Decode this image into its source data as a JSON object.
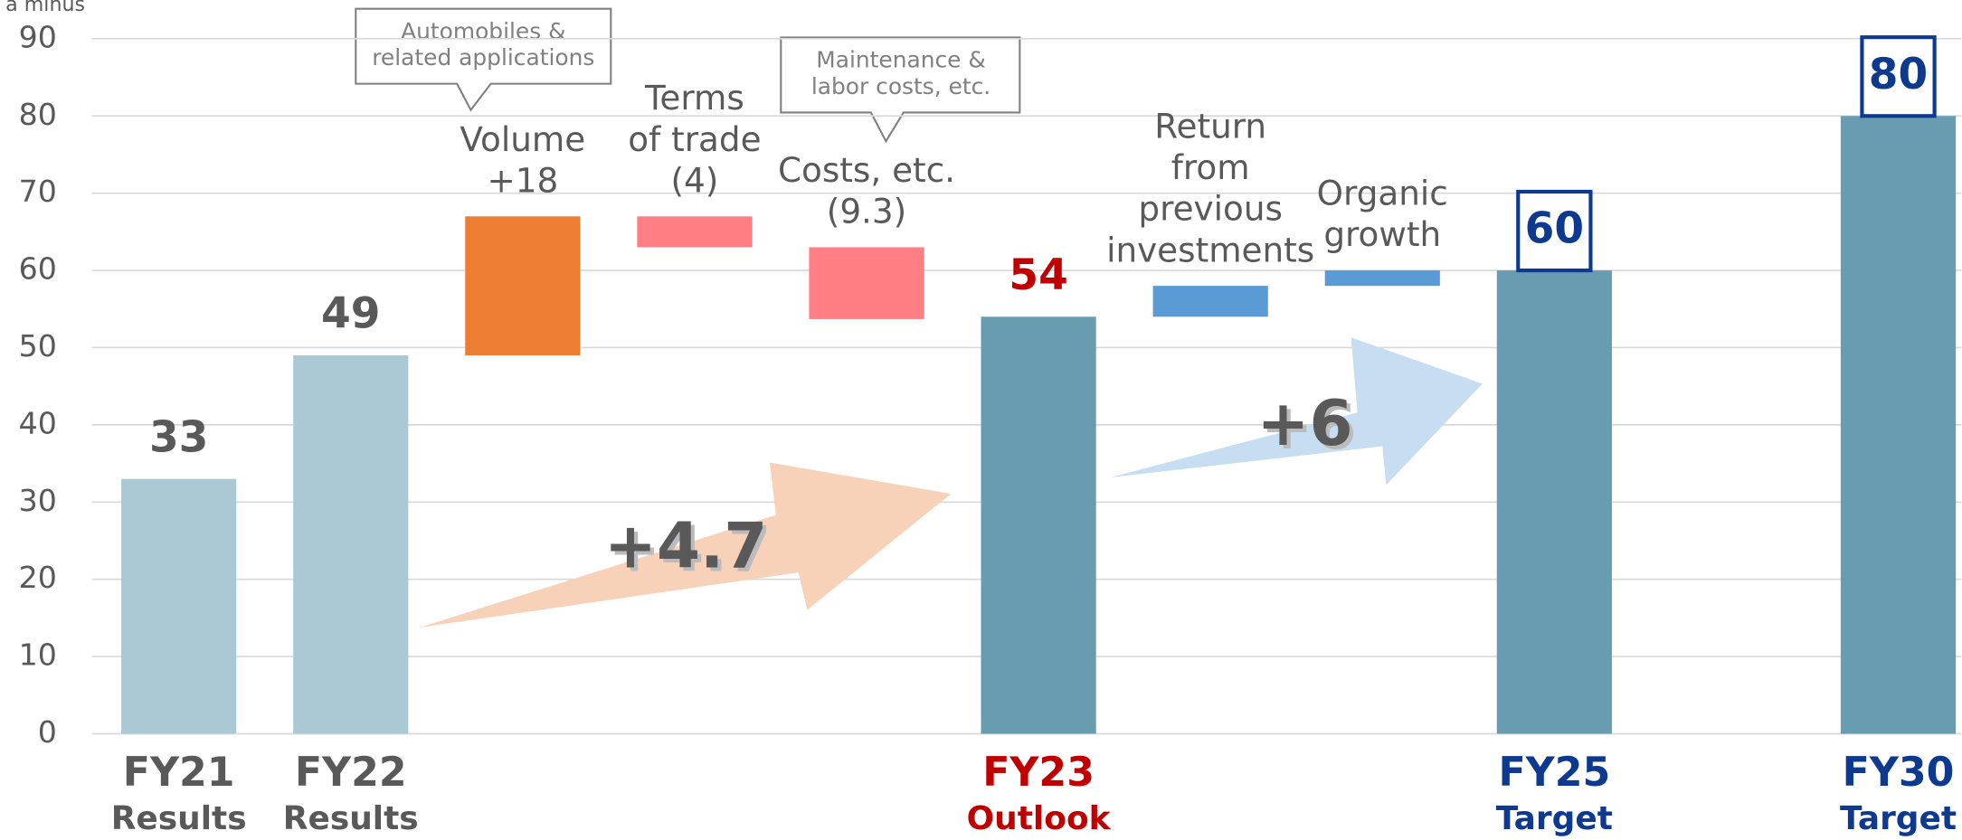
{
  "chart_data": {
    "type": "waterfall",
    "y_label": "a minus",
    "categories": [
      [
        "FY21",
        "Results"
      ],
      [
        "FY22",
        "Results"
      ],
      [
        "Volume"
      ],
      [
        "Terms",
        "of trade"
      ],
      [
        "Costs, etc."
      ],
      [
        "FY23",
        "Outlook"
      ],
      [
        "Return",
        "from",
        "previous",
        "investments"
      ],
      [
        "Organic",
        "growth"
      ],
      [
        "FY25",
        "Target"
      ],
      null,
      [
        "FY30",
        "Target"
      ]
    ],
    "measure": [
      "absolute",
      "absolute",
      "relative",
      "relative",
      "relative",
      "absolute",
      "relative",
      "relative",
      "absolute",
      null,
      "absolute"
    ],
    "values": [
      33,
      49,
      18,
      -4,
      -9.3,
      54,
      4,
      2,
      60,
      null,
      80
    ],
    "value_labels": [
      "33",
      "49",
      "+18",
      "(4)",
      "(9.3)",
      "54",
      null,
      null,
      "60",
      null,
      "80"
    ],
    "value_label_boxed": [
      false,
      false,
      false,
      false,
      false,
      false,
      false,
      false,
      true,
      false,
      true
    ],
    "colors": [
      "#abc9d5",
      "#abc9d5",
      "#ed7d31",
      "#ff7f84",
      "#ff7f84",
      "#679cb1",
      "#5b9bd5",
      "#5b9bd5",
      "#679cb1",
      null,
      "#679cb1"
    ],
    "label_colors": [
      "#595959",
      "#595959",
      "#595959",
      "#595959",
      "#595959",
      "#c00000",
      "#595959",
      "#595959",
      "#0d3a8f",
      null,
      "#0d3a8f"
    ],
    "ylim": [
      0,
      90
    ],
    "yticks": [
      0,
      10,
      20,
      30,
      40,
      50,
      60,
      70,
      80,
      90
    ],
    "grid": true,
    "callouts": [
      [
        "Automobiles &",
        "related applications"
      ],
      [
        "Maintenance &",
        "labor costs, etc."
      ]
    ],
    "arrows": [
      {
        "label": "+4.7",
        "color": "#f8d2b8"
      },
      {
        "label": "+6",
        "color": "#c7ddf1"
      }
    ]
  }
}
